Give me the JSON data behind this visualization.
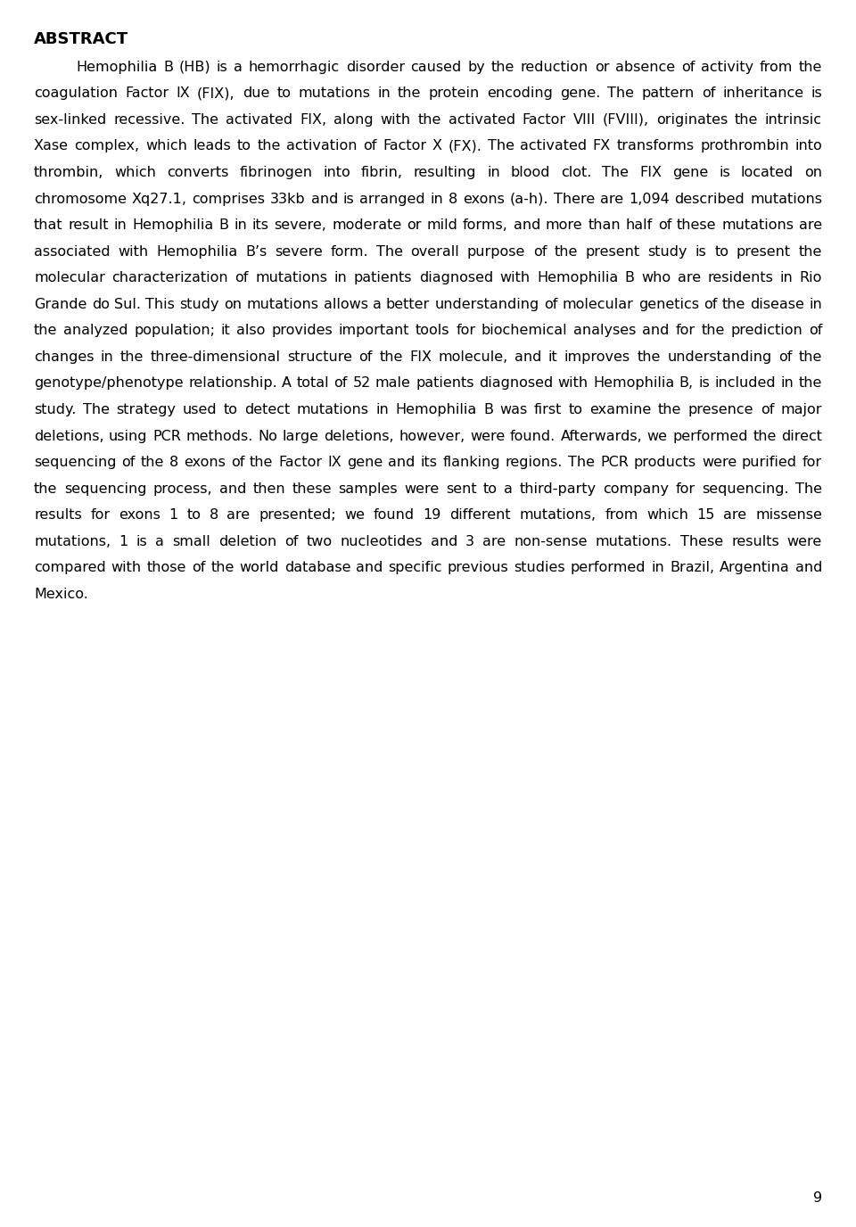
{
  "background_color": "#ffffff",
  "text_color": "#000000",
  "title": "ABSTRACT",
  "body_fontsize": 11.5,
  "title_fontsize": 13.0,
  "page_number": "9",
  "paragraph_text": "Hemophilia B (HB) is a hemorrhagic disorder caused by the reduction or absence of activity from the coagulation Factor IX (FIX), due to mutations in the protein encoding gene. The pattern of inheritance is sex-linked recessive. The activated FIX, along with the activated Factor VIII (FVIII), originates the intrinsic Xase complex, which leads to the activation of Factor X (FX). The activated FX transforms prothrombin into thrombin, which converts fibrinogen into fibrin, resulting in blood clot. The FIX gene is located on chromosome Xq27.1, comprises 33kb and is arranged in 8 exons (a-h). There are 1,094 described mutations that result in Hemophilia B in its severe, moderate or mild forms, and more than half of these mutations are associated with Hemophilia B’s severe form. The overall purpose of the present study is to present the molecular characterization of mutations in patients diagnosed with Hemophilia B who are residents in Rio Grande do Sul. This study on mutations allows a better understanding of molecular genetics of the disease in the analyzed population; it also provides important tools for biochemical analyses and for the prediction of changes in the three-dimensional structure of the FIX molecule, and it improves the understanding of the genotype/phenotype relationship. A total of 52 male patients diagnosed with Hemophilia B, is included in the study. The strategy used to detect mutations in Hemophilia B was first to examine the presence of major deletions, using PCR methods. No large deletions, however, were found. Afterwards, we performed the direct sequencing of the 8 exons of the Factor IX gene and its flanking regions. The PCR products were purified for the sequencing process, and then these samples were sent to a third-party company for sequencing. The results for exons 1 to 8 are presented; we found 19 different mutations, from which 15 are missense mutations, 1 is a small deletion of two nucleotides and 3 are non-sense mutations. These results were compared with those of the world database and specific previous studies performed in Brazil, Argentina and Mexico."
}
